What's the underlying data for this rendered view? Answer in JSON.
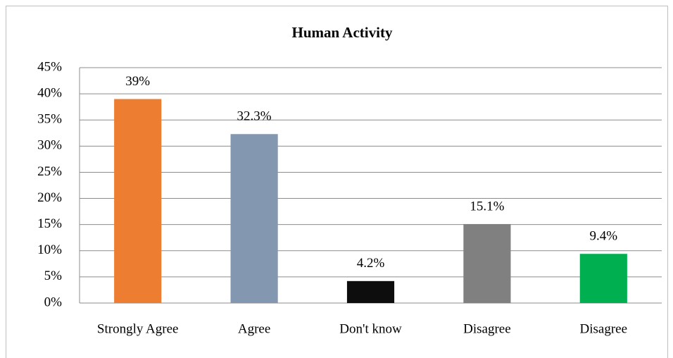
{
  "chart_data": {
    "type": "bar",
    "title": "Human Activity",
    "categories": [
      "Strongly Agree",
      "Agree",
      "Don't know",
      "Disagree",
      "Disagree"
    ],
    "values": [
      39,
      32.3,
      4.2,
      15.1,
      9.4
    ],
    "value_labels": [
      "39%",
      "32.3%",
      "4.2%",
      "15.1%",
      "9.4%"
    ],
    "colors": [
      "#ED7D31",
      "#8497B0",
      "#0D0D0D",
      "#808080",
      "#00B050"
    ],
    "ylim": [
      0,
      45
    ],
    "yticks": [
      {
        "value": 0,
        "label": "0%"
      },
      {
        "value": 5,
        "label": "5%"
      },
      {
        "value": 10,
        "label": "10%"
      },
      {
        "value": 15,
        "label": "15%"
      },
      {
        "value": 20,
        "label": "20%"
      },
      {
        "value": 25,
        "label": "25%"
      },
      {
        "value": 30,
        "label": "30%"
      },
      {
        "value": 35,
        "label": "35%"
      },
      {
        "value": 40,
        "label": "40%"
      },
      {
        "value": 45,
        "label": "45%"
      }
    ],
    "grid": true
  }
}
